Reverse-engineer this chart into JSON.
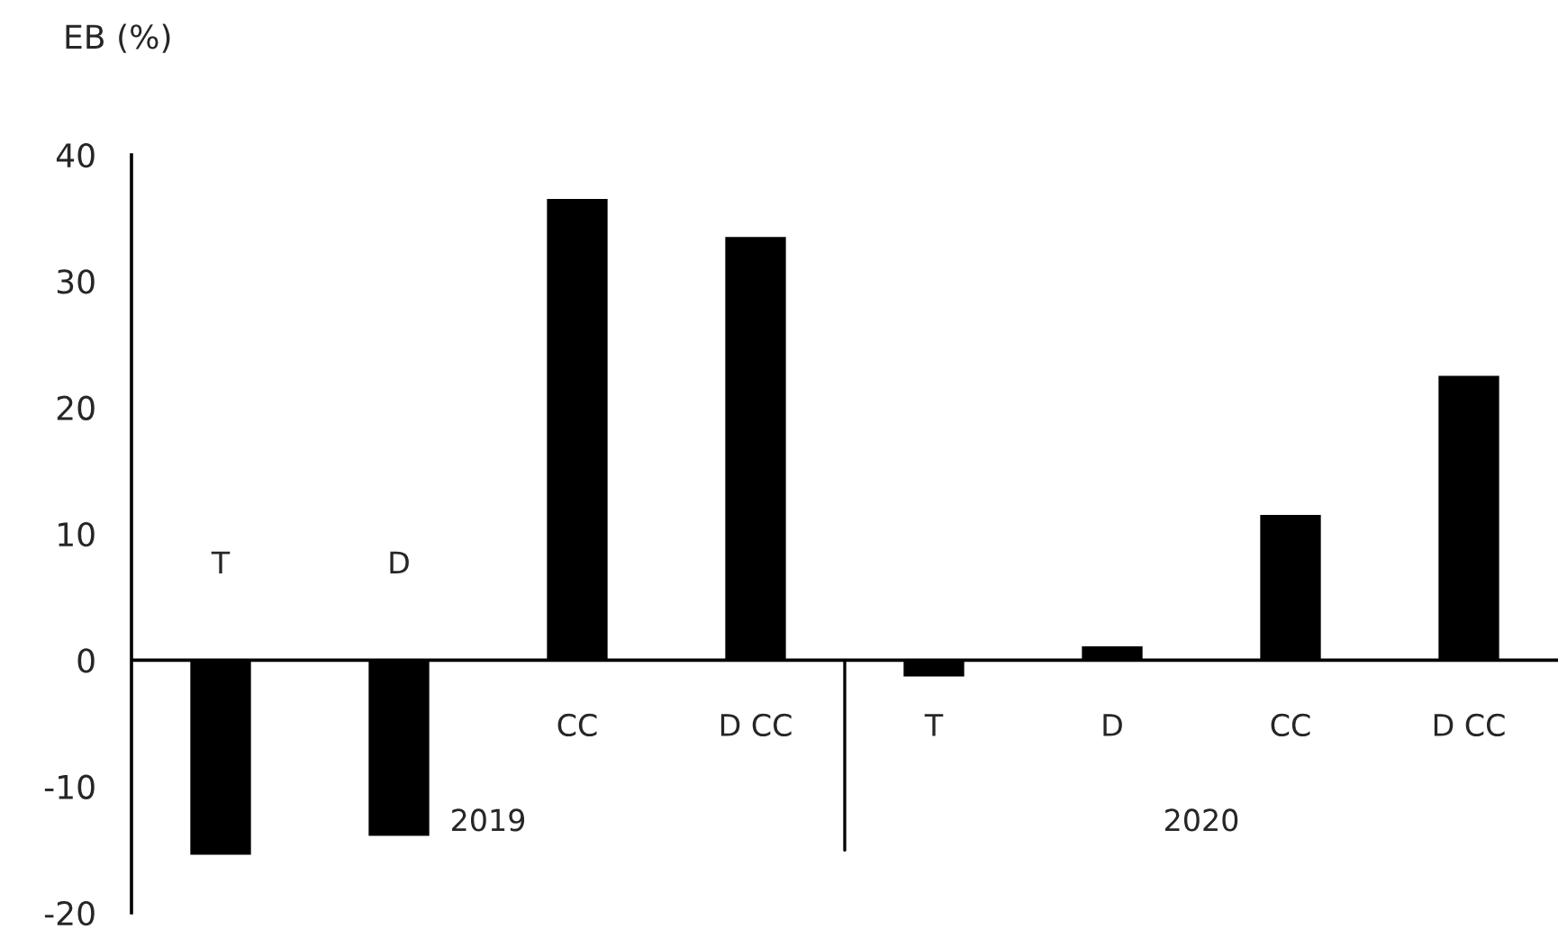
{
  "chart_data": {
    "type": "bar",
    "ylabel": "EB (%)",
    "categories": [
      "T",
      "D",
      "CC",
      "D CC",
      "T",
      "D",
      "CC",
      "D CC"
    ],
    "values": [
      -15.4,
      -13.9,
      36.5,
      33.5,
      -1.3,
      1.1,
      11.5,
      22.5
    ],
    "color": "#000000",
    "ylim": [
      -20,
      40
    ],
    "yticks": [
      -20,
      -10,
      0,
      10,
      20,
      30,
      40
    ],
    "annotations": [
      "2019",
      "2020"
    ],
    "grid": false
  }
}
